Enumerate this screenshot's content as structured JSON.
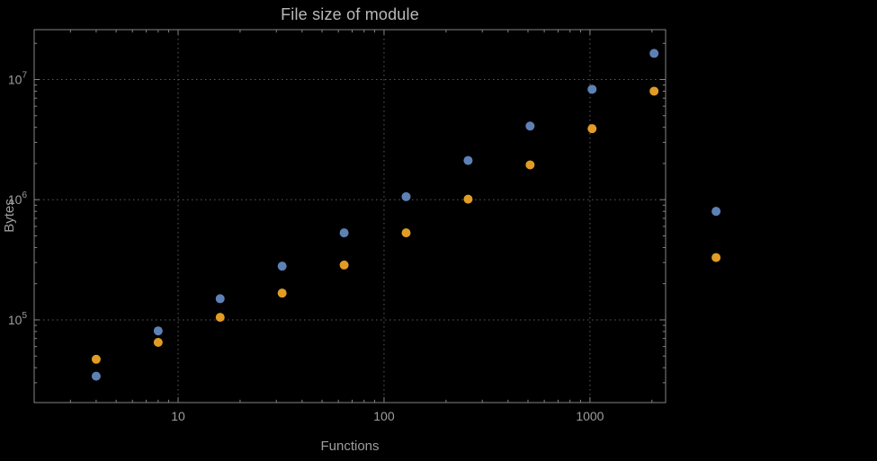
{
  "colors": {
    "background": "#000000",
    "frame": "#848484",
    "grid": "#5c5c5c",
    "tick_text": "#9e9e9e",
    "title_text": "#b9b9b9",
    "series1": "#5e81b5",
    "series2": "#e19c24"
  },
  "chart_data": {
    "type": "scatter",
    "title": "File size of module",
    "xlabel": "Functions",
    "ylabel": "Bytes",
    "x_scale": "log",
    "y_scale": "log",
    "grid": "dotted",
    "legend": "none",
    "x": [
      4,
      8,
      16,
      32,
      64,
      128,
      256,
      512,
      1024,
      2048,
      4096
    ],
    "series": [
      {
        "name": "series-1-blue",
        "color": "#5e81b5",
        "values": [
          34000,
          81000,
          150000,
          280000,
          530000,
          1060000,
          2120000,
          4100000,
          8300000,
          16500000,
          800000
        ]
      },
      {
        "name": "series-2-orange",
        "color": "#e19c24",
        "values": [
          47000,
          65000,
          105000,
          167000,
          286000,
          530000,
          1010000,
          1950000,
          3900000,
          8000000,
          330000
        ]
      }
    ],
    "x_ticks": [
      10,
      100,
      1000
    ],
    "y_tick_exponents": [
      5,
      6,
      7
    ],
    "y_tick_base": "10",
    "xlim": [
      2.0,
      2330
    ],
    "ylim": [
      20500,
      26000000
    ]
  }
}
